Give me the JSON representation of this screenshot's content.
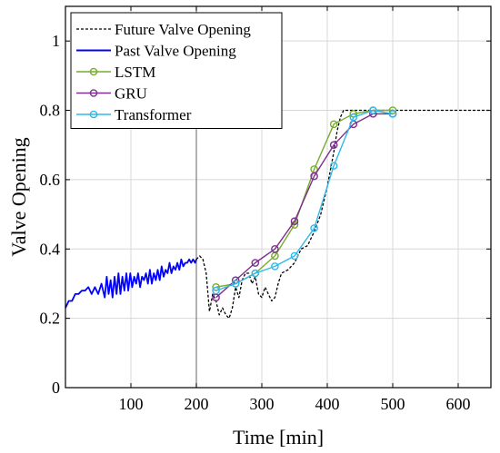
{
  "chart_data": {
    "type": "line",
    "title": "",
    "xlabel": "Time [min]",
    "ylabel": "Valve Opening",
    "xlim": [
      0,
      650
    ],
    "ylim": [
      0,
      1.1
    ],
    "x_ticks": [
      100,
      200,
      300,
      400,
      500,
      600
    ],
    "x_tick_labels": [
      "100",
      "200",
      "300",
      "400",
      "500",
      "600"
    ],
    "y_ticks": [
      0,
      0.2,
      0.4,
      0.6,
      0.8,
      1
    ],
    "y_tick_labels": [
      "0",
      "0.2",
      "0.4",
      "0.6",
      "0.8",
      "1"
    ],
    "grid": true,
    "legend_position": "top-left",
    "vertical_marker_x": 200,
    "series": [
      {
        "name": "Future Valve Opening",
        "style": "dashed",
        "color": "#000000",
        "x": [
          200,
          205,
          210,
          215,
          220,
          225,
          230,
          235,
          240,
          245,
          250,
          255,
          260,
          265,
          270,
          275,
          280,
          285,
          290,
          295,
          300,
          305,
          310,
          315,
          320,
          325,
          330,
          340,
          350,
          360,
          370,
          380,
          390,
          400,
          410,
          415,
          420,
          425,
          430,
          440,
          500,
          650
        ],
        "y": [
          0.37,
          0.38,
          0.37,
          0.33,
          0.22,
          0.27,
          0.25,
          0.21,
          0.23,
          0.21,
          0.2,
          0.23,
          0.29,
          0.26,
          0.31,
          0.33,
          0.33,
          0.3,
          0.32,
          0.27,
          0.26,
          0.29,
          0.27,
          0.25,
          0.26,
          0.3,
          0.33,
          0.34,
          0.36,
          0.4,
          0.41,
          0.45,
          0.5,
          0.58,
          0.68,
          0.74,
          0.78,
          0.8,
          0.8,
          0.8,
          0.8,
          0.8
        ]
      },
      {
        "name": "Past Valve Opening",
        "style": "solid",
        "color": "#0000ff",
        "x": [
          0,
          5,
          10,
          15,
          20,
          25,
          30,
          35,
          40,
          45,
          50,
          55,
          60,
          63,
          66,
          69,
          72,
          75,
          78,
          81,
          84,
          87,
          90,
          93,
          96,
          99,
          102,
          105,
          108,
          111,
          114,
          117,
          120,
          123,
          126,
          129,
          132,
          135,
          138,
          141,
          144,
          147,
          150,
          153,
          156,
          159,
          162,
          165,
          168,
          171,
          174,
          177,
          180,
          183,
          186,
          189,
          192,
          195,
          198,
          200
        ],
        "y": [
          0.23,
          0.25,
          0.25,
          0.27,
          0.27,
          0.28,
          0.28,
          0.29,
          0.27,
          0.29,
          0.27,
          0.3,
          0.26,
          0.32,
          0.27,
          0.31,
          0.26,
          0.32,
          0.27,
          0.33,
          0.27,
          0.32,
          0.28,
          0.33,
          0.28,
          0.33,
          0.29,
          0.32,
          0.3,
          0.33,
          0.29,
          0.32,
          0.31,
          0.33,
          0.3,
          0.34,
          0.3,
          0.33,
          0.31,
          0.34,
          0.31,
          0.35,
          0.32,
          0.34,
          0.33,
          0.36,
          0.33,
          0.35,
          0.34,
          0.36,
          0.34,
          0.37,
          0.35,
          0.36,
          0.36,
          0.37,
          0.36,
          0.37,
          0.36,
          0.37
        ]
      },
      {
        "name": "LSTM",
        "style": "solid-markers",
        "color": "#77ac30",
        "x": [
          230,
          260,
          290,
          320,
          350,
          380,
          410,
          440,
          470,
          500
        ],
        "y": [
          0.29,
          0.3,
          0.33,
          0.38,
          0.47,
          0.63,
          0.76,
          0.79,
          0.8,
          0.8
        ]
      },
      {
        "name": "GRU",
        "style": "solid-markers",
        "color": "#7e2f8e",
        "x": [
          230,
          260,
          290,
          320,
          350,
          380,
          410,
          440,
          470,
          500
        ],
        "y": [
          0.26,
          0.31,
          0.36,
          0.4,
          0.48,
          0.61,
          0.7,
          0.76,
          0.79,
          0.79
        ]
      },
      {
        "name": "Transformer",
        "style": "solid-markers",
        "color": "#32b8e8",
        "x": [
          230,
          260,
          290,
          320,
          350,
          380,
          410,
          440,
          470,
          500
        ],
        "y": [
          0.28,
          0.3,
          0.33,
          0.35,
          0.38,
          0.46,
          0.64,
          0.78,
          0.8,
          0.79
        ]
      }
    ]
  }
}
